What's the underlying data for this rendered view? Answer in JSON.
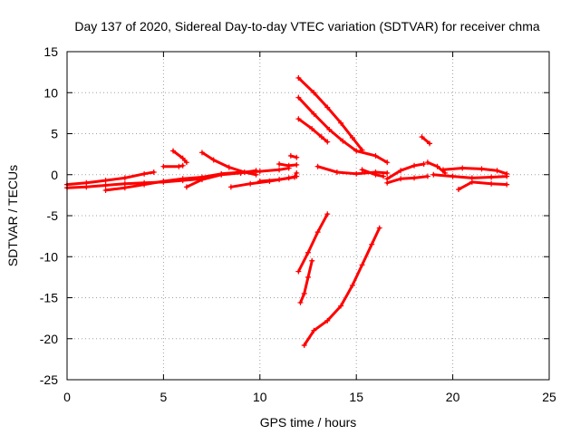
{
  "chart_data": {
    "type": "scatter",
    "title": "Day 137 of 2020, Sidereal Day-to-day VTEC variation (SDTVAR) for receiver chma",
    "xlabel": "GPS time / hours",
    "ylabel": "SDTVAR / TECUs",
    "xlim": [
      0,
      25
    ],
    "ylim": [
      -25,
      15
    ],
    "xticks": [
      0,
      5,
      10,
      15,
      20,
      25
    ],
    "yticks": [
      -25,
      -20,
      -15,
      -10,
      -5,
      0,
      5,
      10,
      15
    ],
    "grid": true,
    "marker": "plus",
    "color": "#ff0000",
    "series": [
      {
        "name": "arc-1",
        "points": [
          [
            0.0,
            -1.2
          ],
          [
            1.0,
            -1.0
          ],
          [
            2.0,
            -0.7
          ],
          [
            3.0,
            -0.4
          ],
          [
            4.0,
            0.1
          ],
          [
            4.5,
            0.3
          ]
        ]
      },
      {
        "name": "arc-2",
        "points": [
          [
            0.0,
            -1.6
          ],
          [
            1.0,
            -1.5
          ],
          [
            2.0,
            -1.3
          ],
          [
            3.0,
            -1.1
          ],
          [
            4.0,
            -1.0
          ],
          [
            5.0,
            -0.9
          ],
          [
            6.0,
            -0.7
          ],
          [
            7.0,
            -0.5
          ]
        ]
      },
      {
        "name": "arc-3",
        "points": [
          [
            2.0,
            -1.9
          ],
          [
            3.0,
            -1.6
          ],
          [
            4.0,
            -1.2
          ],
          [
            5.0,
            -0.8
          ],
          [
            6.0,
            -0.5
          ],
          [
            7.0,
            -0.3
          ],
          [
            8.0,
            0.1
          ],
          [
            9.0,
            0.3
          ],
          [
            10.0,
            0.4
          ],
          [
            11.0,
            0.6
          ],
          [
            11.5,
            0.8
          ]
        ]
      },
      {
        "name": "arc-4",
        "points": [
          [
            5.5,
            2.9
          ],
          [
            6.0,
            2.0
          ],
          [
            6.2,
            1.5
          ]
        ]
      },
      {
        "name": "arc-5",
        "points": [
          [
            5.0,
            1.0
          ],
          [
            5.8,
            1.0
          ],
          [
            6.0,
            1.1
          ]
        ]
      },
      {
        "name": "arc-6",
        "points": [
          [
            7.0,
            2.7
          ],
          [
            7.6,
            1.8
          ],
          [
            8.4,
            0.9
          ],
          [
            9.2,
            0.3
          ],
          [
            9.8,
            0.0
          ]
        ]
      },
      {
        "name": "arc-7",
        "points": [
          [
            6.2,
            -1.5
          ],
          [
            7.0,
            -0.6
          ],
          [
            8.0,
            0.0
          ],
          [
            9.0,
            0.2
          ],
          [
            9.8,
            0.5
          ]
        ]
      },
      {
        "name": "arc-8",
        "points": [
          [
            8.5,
            -1.5
          ],
          [
            9.5,
            -1.1
          ],
          [
            10.5,
            -0.8
          ],
          [
            11.5,
            -0.4
          ],
          [
            11.9,
            -0.2
          ]
        ]
      },
      {
        "name": "arc-9",
        "points": [
          [
            10.0,
            -0.8
          ],
          [
            11.0,
            -0.6
          ],
          [
            11.8,
            -0.3
          ],
          [
            11.9,
            0.2
          ]
        ]
      },
      {
        "name": "arc-10",
        "points": [
          [
            11.0,
            1.3
          ],
          [
            11.5,
            1.1
          ],
          [
            11.9,
            1.2
          ]
        ]
      },
      {
        "name": "arc-11",
        "points": [
          [
            11.6,
            2.3
          ],
          [
            11.9,
            2.1
          ]
        ]
      },
      {
        "name": "arc-12",
        "points": [
          [
            12.0,
            11.8
          ],
          [
            12.8,
            10.0
          ],
          [
            13.5,
            8.2
          ],
          [
            14.2,
            6.3
          ],
          [
            14.8,
            4.5
          ],
          [
            15.3,
            3.0
          ]
        ]
      },
      {
        "name": "arc-13",
        "points": [
          [
            12.0,
            9.4
          ],
          [
            12.8,
            7.4
          ],
          [
            13.6,
            5.5
          ],
          [
            14.3,
            4.1
          ],
          [
            15.0,
            2.9
          ],
          [
            16.0,
            2.3
          ],
          [
            16.6,
            1.5
          ]
        ]
      },
      {
        "name": "arc-14",
        "points": [
          [
            12.0,
            6.8
          ],
          [
            12.7,
            5.6
          ],
          [
            13.2,
            4.6
          ],
          [
            13.5,
            4.0
          ]
        ]
      },
      {
        "name": "arc-15",
        "points": [
          [
            13.0,
            1.0
          ],
          [
            14.0,
            0.3
          ],
          [
            15.0,
            0.1
          ],
          [
            16.0,
            0.3
          ],
          [
            16.6,
            0.2
          ]
        ]
      },
      {
        "name": "arc-16",
        "points": [
          [
            15.3,
            0.6
          ],
          [
            16.0,
            0.0
          ],
          [
            16.4,
            -0.2
          ]
        ]
      },
      {
        "name": "arc-17",
        "points": [
          [
            13.5,
            -4.8
          ],
          [
            13.0,
            -7.0
          ],
          [
            12.5,
            -9.5
          ],
          [
            12.0,
            -11.8
          ]
        ]
      },
      {
        "name": "arc-18",
        "points": [
          [
            12.7,
            -10.5
          ],
          [
            12.5,
            -12.5
          ],
          [
            12.3,
            -14.5
          ],
          [
            12.1,
            -15.6
          ]
        ]
      },
      {
        "name": "arc-19",
        "points": [
          [
            16.2,
            -6.5
          ],
          [
            15.8,
            -8.5
          ],
          [
            15.3,
            -11.0
          ],
          [
            14.8,
            -13.5
          ],
          [
            14.2,
            -16.0
          ],
          [
            13.5,
            -17.8
          ],
          [
            12.8,
            -19.0
          ],
          [
            12.3,
            -20.8
          ]
        ]
      },
      {
        "name": "arc-20",
        "points": [
          [
            16.6,
            -1.0
          ],
          [
            17.3,
            -0.5
          ],
          [
            18.0,
            -0.4
          ],
          [
            18.7,
            -0.2
          ]
        ]
      },
      {
        "name": "arc-21",
        "points": [
          [
            16.6,
            -0.5
          ],
          [
            17.3,
            0.5
          ],
          [
            18.0,
            1.1
          ],
          [
            18.5,
            1.3
          ]
        ]
      },
      {
        "name": "arc-22",
        "points": [
          [
            18.4,
            4.6
          ],
          [
            18.8,
            3.8
          ]
        ]
      },
      {
        "name": "arc-23",
        "points": [
          [
            18.7,
            1.5
          ],
          [
            19.2,
            1.0
          ],
          [
            19.6,
            0.2
          ]
        ]
      },
      {
        "name": "arc-24",
        "points": [
          [
            19.5,
            0.6
          ],
          [
            20.5,
            0.8
          ],
          [
            21.5,
            0.7
          ],
          [
            22.3,
            0.5
          ],
          [
            22.8,
            0.1
          ]
        ]
      },
      {
        "name": "arc-25",
        "points": [
          [
            19.0,
            0.0
          ],
          [
            20.0,
            -0.2
          ],
          [
            21.0,
            -0.4
          ],
          [
            22.0,
            -0.3
          ],
          [
            22.8,
            -0.2
          ]
        ]
      },
      {
        "name": "arc-26",
        "points": [
          [
            20.3,
            -1.8
          ],
          [
            21.0,
            -0.9
          ],
          [
            22.0,
            -1.1
          ],
          [
            22.8,
            -1.2
          ]
        ]
      }
    ]
  }
}
